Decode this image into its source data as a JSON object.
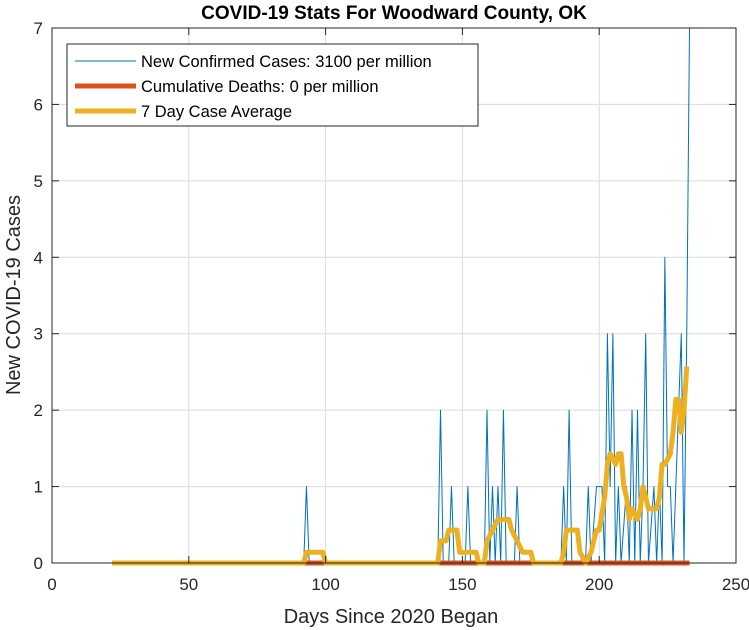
{
  "chart_data": {
    "type": "line",
    "title": "COVID-19 Stats For Woodward County, OK",
    "xlabel": "Days Since 2020 Began",
    "ylabel": "New COVID-19 Cases",
    "xlim": [
      0,
      250
    ],
    "ylim": [
      0,
      7
    ],
    "xticks": [
      "0",
      "50",
      "100",
      "150",
      "200",
      "250"
    ],
    "yticks": [
      "0",
      "1",
      "2",
      "3",
      "4",
      "5",
      "6",
      "7"
    ],
    "grid": true,
    "legend_position": "top-left",
    "series": [
      {
        "name": "New Confirmed Cases: 3100 per million",
        "color": "#0072BD",
        "width": 1,
        "points": [
          [
            22,
            0
          ],
          [
            92,
            0
          ],
          [
            93,
            1
          ],
          [
            94,
            0
          ],
          [
            141,
            0
          ],
          [
            142,
            2
          ],
          [
            143,
            0
          ],
          [
            145,
            0
          ],
          [
            146,
            1
          ],
          [
            147,
            0
          ],
          [
            151,
            0
          ],
          [
            152,
            1
          ],
          [
            153,
            0
          ],
          [
            158,
            0
          ],
          [
            159,
            2
          ],
          [
            160,
            0
          ],
          [
            161,
            1
          ],
          [
            162,
            0
          ],
          [
            163,
            1
          ],
          [
            164,
            0
          ],
          [
            165,
            2
          ],
          [
            166,
            0
          ],
          [
            169,
            0
          ],
          [
            170,
            1
          ],
          [
            171,
            0
          ],
          [
            186,
            0
          ],
          [
            187,
            1
          ],
          [
            188,
            0
          ],
          [
            189,
            2
          ],
          [
            190,
            0
          ],
          [
            195,
            0
          ],
          [
            196,
            1
          ],
          [
            197,
            0
          ],
          [
            199,
            1
          ],
          [
            201,
            1
          ],
          [
            202,
            0
          ],
          [
            203,
            3
          ],
          [
            204,
            1
          ],
          [
            205,
            3
          ],
          [
            206,
            0
          ],
          [
            207,
            1
          ],
          [
            208,
            0
          ],
          [
            210,
            1
          ],
          [
            211,
            0
          ],
          [
            212,
            2
          ],
          [
            213,
            0
          ],
          [
            214,
            2
          ],
          [
            215,
            0
          ],
          [
            216,
            1
          ],
          [
            217,
            3
          ],
          [
            218,
            0
          ],
          [
            220,
            1
          ],
          [
            221,
            0
          ],
          [
            222,
            1
          ],
          [
            223,
            0
          ],
          [
            224,
            4
          ],
          [
            225,
            1
          ],
          [
            226,
            1
          ],
          [
            227,
            0
          ],
          [
            228,
            1
          ],
          [
            229,
            2
          ],
          [
            230,
            3
          ],
          [
            231,
            0
          ],
          [
            232,
            3
          ],
          [
            233,
            7
          ]
        ]
      },
      {
        "name": "Cumulative Deaths: 0 per million",
        "color": "#D95319",
        "width": 5,
        "points": [
          [
            22,
            0
          ],
          [
            233,
            0
          ]
        ]
      },
      {
        "name": "7 Day Case Average",
        "color": "#EDB120",
        "width": 5,
        "points": [
          [
            22,
            0
          ],
          [
            92,
            0
          ],
          [
            93,
            0.14
          ],
          [
            99,
            0.14
          ],
          [
            100,
            0
          ],
          [
            141,
            0
          ],
          [
            142,
            0.29
          ],
          [
            144,
            0.29
          ],
          [
            145,
            0.43
          ],
          [
            148,
            0.43
          ],
          [
            149,
            0.14
          ],
          [
            155,
            0.14
          ],
          [
            156,
            0
          ],
          [
            158,
            0
          ],
          [
            159,
            0.29
          ],
          [
            161,
            0.43
          ],
          [
            163,
            0.57
          ],
          [
            167,
            0.57
          ],
          [
            168,
            0.43
          ],
          [
            170,
            0.29
          ],
          [
            172,
            0.14
          ],
          [
            175,
            0.14
          ],
          [
            176,
            0
          ],
          [
            186,
            0
          ],
          [
            187,
            0.14
          ],
          [
            188,
            0.43
          ],
          [
            192,
            0.43
          ],
          [
            193,
            0.14
          ],
          [
            195,
            0
          ],
          [
            197,
            0.14
          ],
          [
            199,
            0.43
          ],
          [
            200,
            0.43
          ],
          [
            202,
            0.86
          ],
          [
            203,
            1.29
          ],
          [
            204,
            1.43
          ],
          [
            206,
            1.29
          ],
          [
            207,
            1.43
          ],
          [
            208,
            1.43
          ],
          [
            209,
            1
          ],
          [
            210,
            0.86
          ],
          [
            211,
            0.57
          ],
          [
            212,
            0.71
          ],
          [
            214,
            0.57
          ],
          [
            215,
            0.71
          ],
          [
            216,
            1
          ],
          [
            217,
            0.86
          ],
          [
            218,
            0.71
          ],
          [
            221,
            0.71
          ],
          [
            222,
            0.86
          ],
          [
            223,
            1.29
          ],
          [
            224,
            1.29
          ],
          [
            226,
            1.43
          ],
          [
            227,
            1.71
          ],
          [
            228,
            2.14
          ],
          [
            229,
            2.14
          ],
          [
            230,
            1.71
          ],
          [
            231,
            2
          ],
          [
            232,
            2.57
          ]
        ]
      }
    ]
  }
}
